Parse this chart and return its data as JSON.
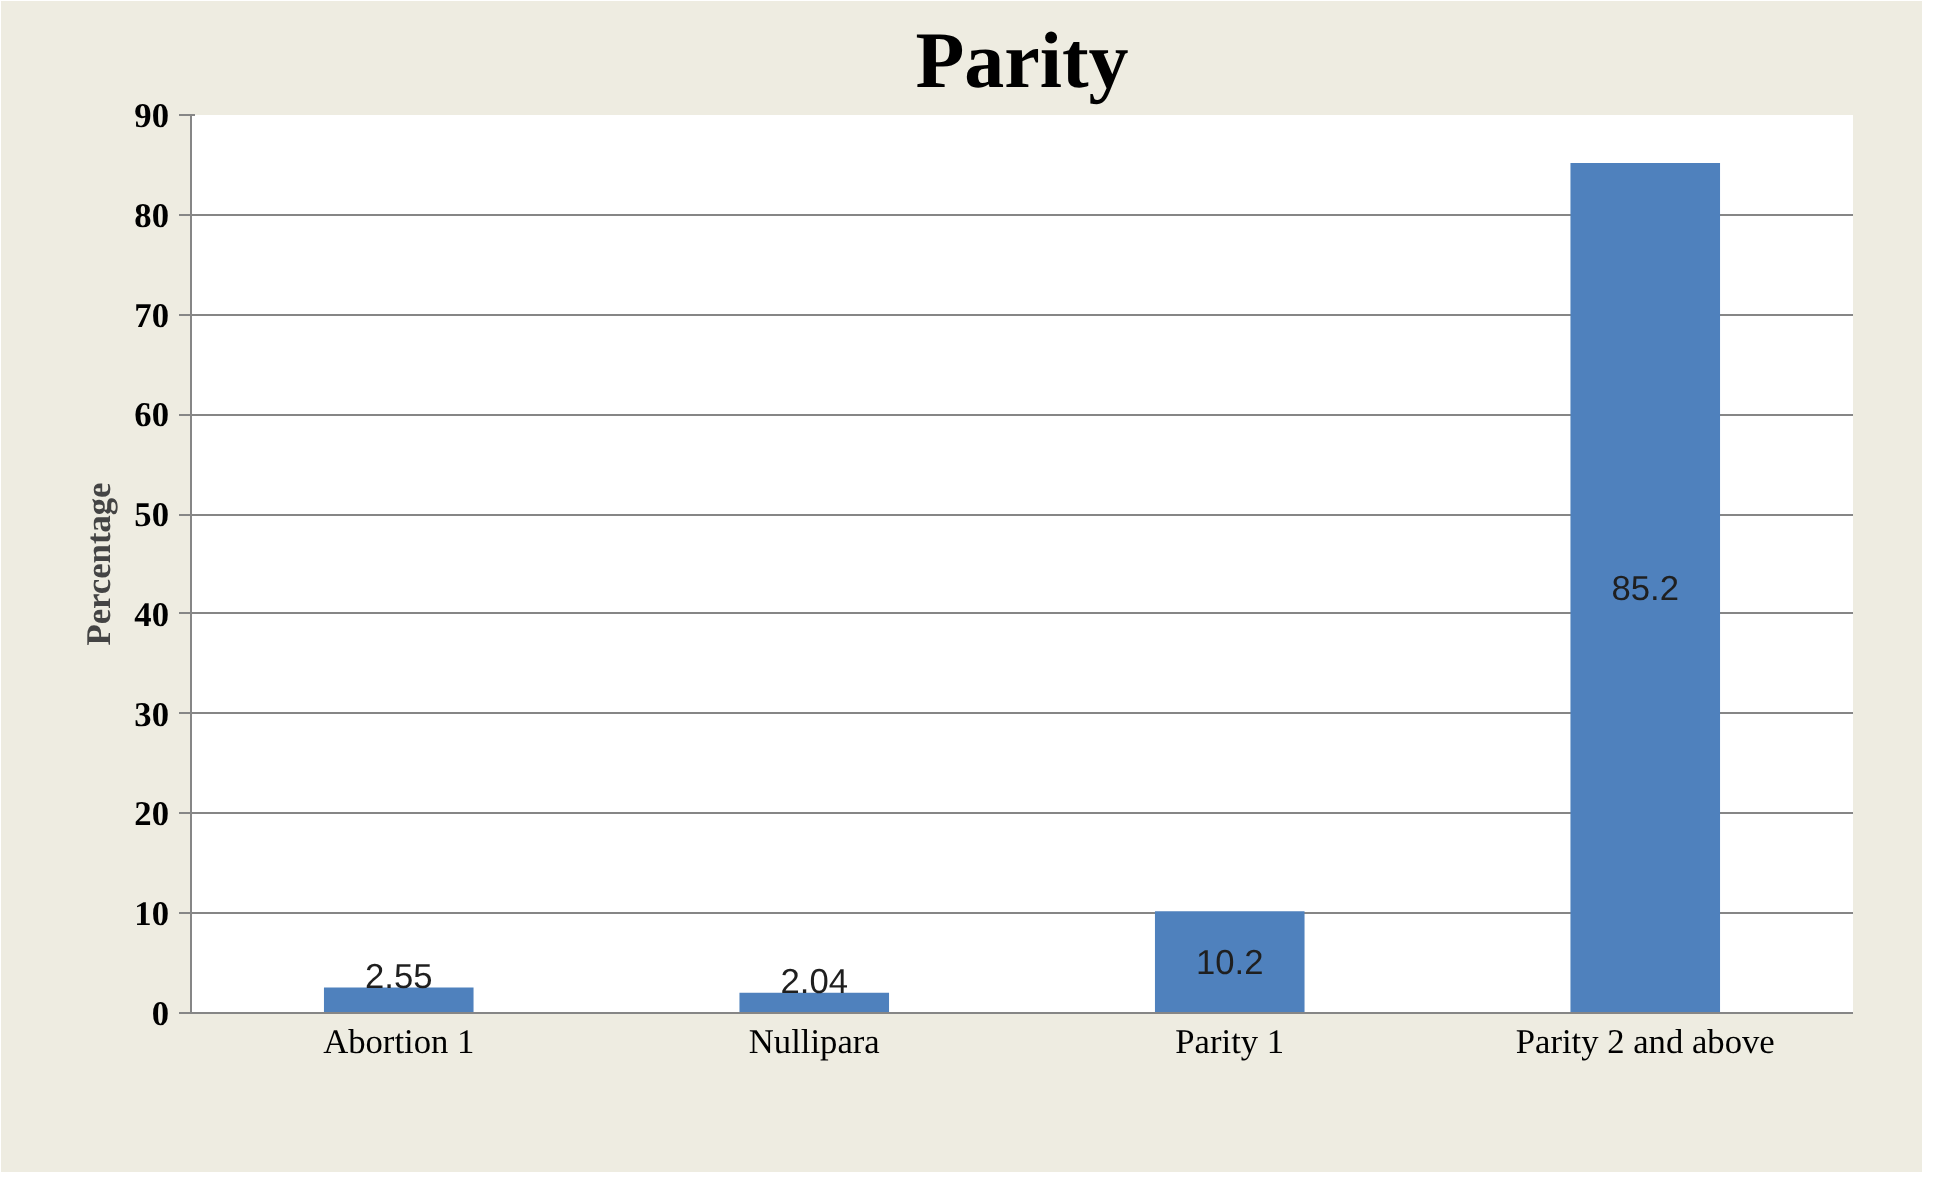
{
  "chart_data": {
    "type": "bar",
    "title": "Parity",
    "ylabel": "Percentage",
    "categories": [
      "Abortion 1",
      "Nullipara",
      "Parity 1",
      "Parity 2 and above"
    ],
    "values": [
      2.55,
      2.04,
      10.2,
      85.2
    ],
    "color": "#4f81bd",
    "ylim": [
      0,
      90
    ],
    "yticks": [
      0,
      10,
      20,
      30,
      40,
      50,
      60,
      70,
      80,
      90
    ],
    "grid": "y",
    "data_labels": true
  }
}
